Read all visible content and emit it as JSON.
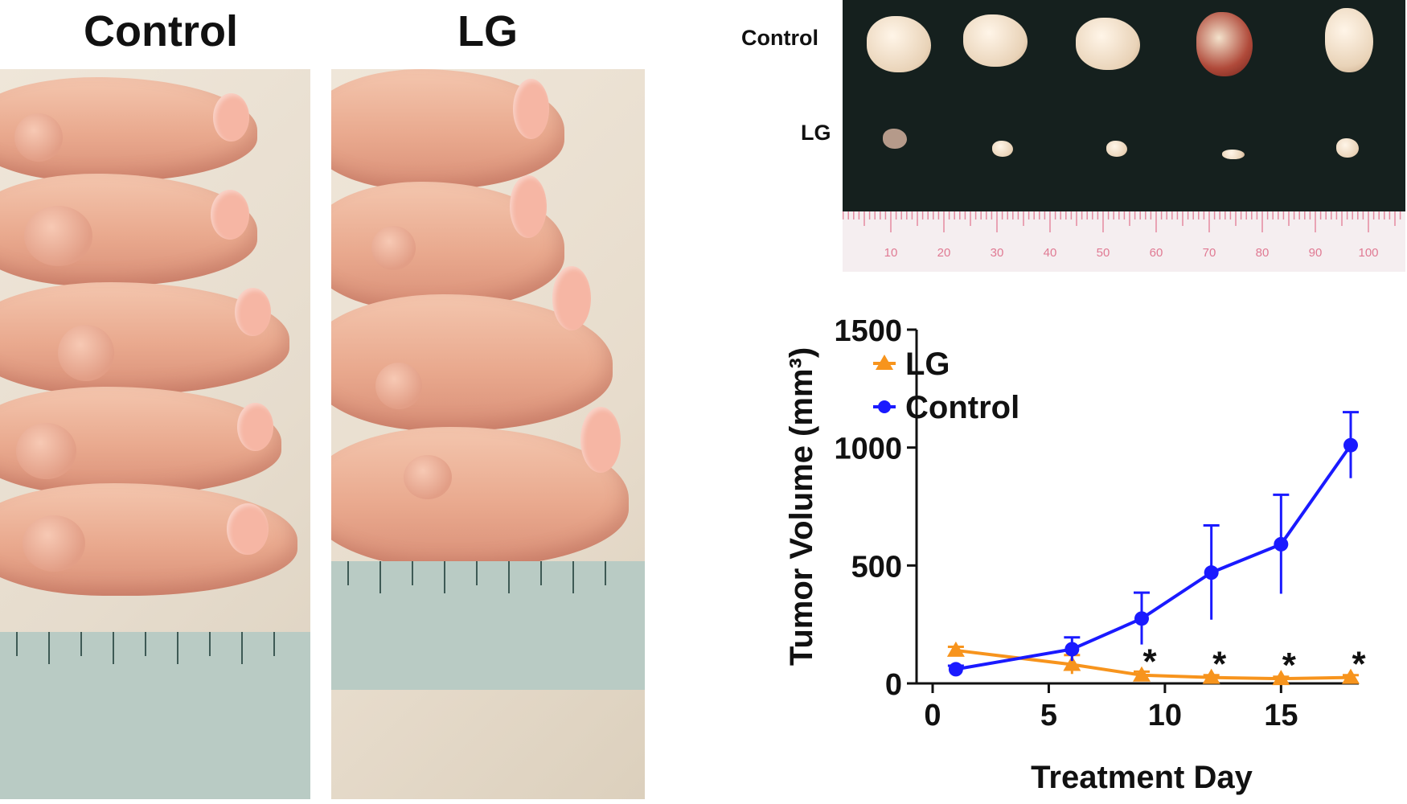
{
  "panels": {
    "left_title": "Control",
    "middle_title": "LG",
    "tumor_row_control": "Control",
    "tumor_row_lg": "LG",
    "ruler_top_numbers": [
      "10",
      "20",
      "30",
      "40",
      "50",
      "60",
      "70",
      "80",
      "90",
      "100"
    ]
  },
  "chart_data": {
    "type": "line",
    "title": "",
    "xlabel": "Treatment Day",
    "ylabel": "Tumor Volume (mm³)",
    "xlim": [
      0,
      18
    ],
    "ylim": [
      0,
      1500
    ],
    "x_ticks": [
      "0",
      "5",
      "10",
      "15"
    ],
    "y_ticks": [
      "0",
      "500",
      "1000",
      "1500"
    ],
    "legend_position": "top-left",
    "significance_marker": "*",
    "significance_days": [
      9,
      12,
      15,
      18
    ],
    "series": [
      {
        "name": "LG",
        "color": "#f7941d",
        "marker": "triangle",
        "x": [
          1,
          6,
          9,
          12,
          15,
          18
        ],
        "y": [
          140,
          80,
          35,
          25,
          20,
          25
        ],
        "err": [
          15,
          40,
          15,
          10,
          8,
          10
        ]
      },
      {
        "name": "Control",
        "color": "#1a1aff",
        "marker": "circle",
        "x": [
          1,
          6,
          9,
          12,
          15,
          18
        ],
        "y": [
          60,
          145,
          275,
          470,
          590,
          1010
        ],
        "err": [
          15,
          50,
          110,
          200,
          210,
          140
        ]
      }
    ]
  }
}
